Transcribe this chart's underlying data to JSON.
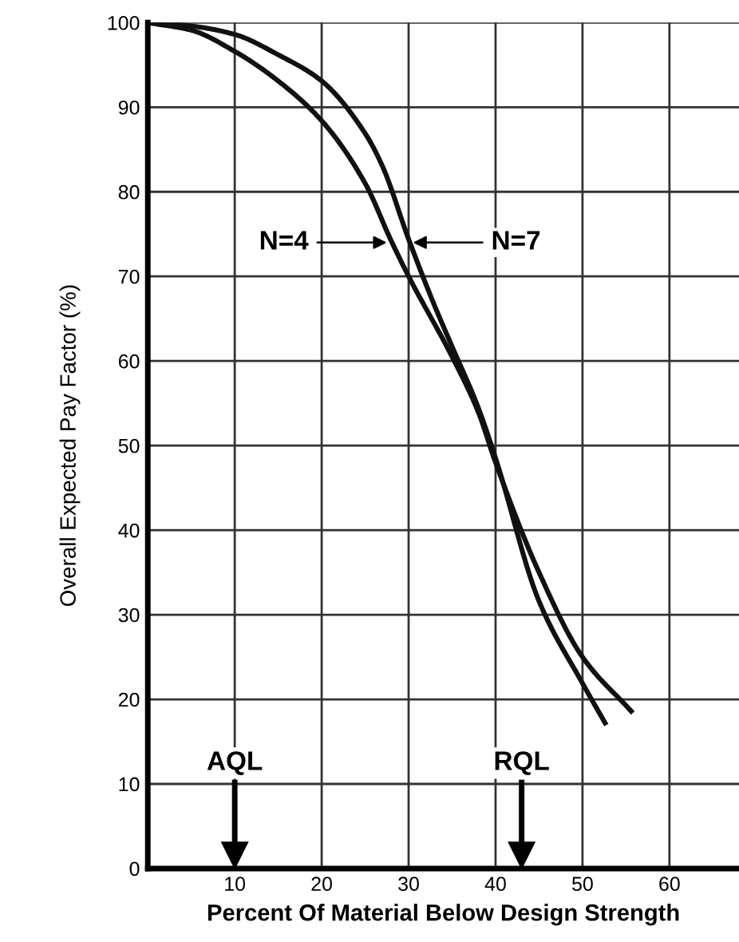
{
  "chart_data": {
    "type": "line",
    "xlabel": "Percent Of Material Below Design Strength",
    "ylabel": "Overall Expected Pay Factor (%)",
    "series": [
      {
        "color": "#111111",
        "x": [
          0,
          5,
          10,
          15,
          20,
          25,
          28,
          30,
          35,
          38,
          40,
          45,
          50,
          55.6
        ],
        "values": [
          100,
          99.1,
          96.6,
          93.1,
          88.4,
          81,
          74.2,
          70,
          60.5,
          54,
          48,
          35,
          25,
          18.6
        ]
      },
      {
        "color": "#111111",
        "x": [
          0,
          5,
          10,
          15,
          20,
          25,
          27,
          30,
          33,
          35,
          38,
          40,
          45,
          50,
          52.6
        ],
        "values": [
          100,
          99.6,
          98.6,
          96.2,
          93.1,
          86.9,
          83,
          74.4,
          66.5,
          61.7,
          54.5,
          48.5,
          31.6,
          21.9,
          17.2
        ]
      }
    ],
    "annotations": [
      {
        "text": "N=4",
        "x": 27.5,
        "y": 74
      },
      {
        "text": "N=7",
        "x": 30.5,
        "y": 74
      }
    ],
    "ref_lines": [
      {
        "axis": "x",
        "value": 10,
        "label": "AQL"
      },
      {
        "axis": "x",
        "value": 43,
        "label": "RQL"
      }
    ],
    "xlim": [
      0,
      68
    ],
    "ylim": [
      0,
      100
    ],
    "xticks": [
      10,
      20,
      30,
      40,
      50,
      60
    ],
    "yticks": [
      0,
      10,
      20,
      30,
      40,
      50,
      60,
      70,
      80,
      90,
      100
    ],
    "grid": true,
    "legend": false,
    "marker": "none",
    "line_style": "solid"
  }
}
